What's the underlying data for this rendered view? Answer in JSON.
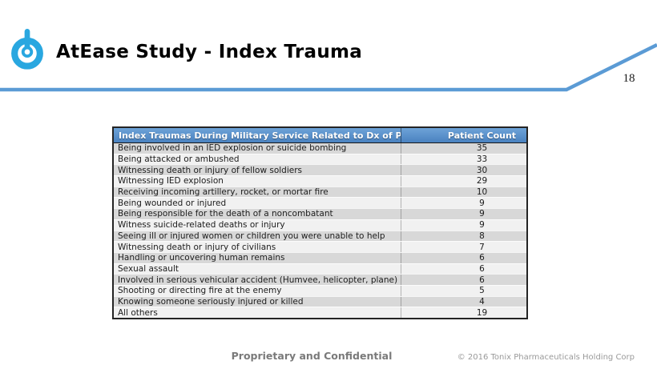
{
  "header": {
    "title": "AtEase Study - Index Trauma",
    "page_number": "18"
  },
  "table": {
    "columns": [
      "Index Traumas During Military Service Related to Dx of PTSD",
      "Patient Count"
    ],
    "rows": [
      {
        "label": "Being involved in an IED explosion or suicide bombing",
        "count": "35"
      },
      {
        "label": "Being attacked or ambushed",
        "count": "33"
      },
      {
        "label": "Witnessing death or injury of fellow soldiers",
        "count": "30"
      },
      {
        "label": "Witnessing IED explosion",
        "count": "29"
      },
      {
        "label": "Receiving incoming artillery, rocket, or mortar fire",
        "count": "10"
      },
      {
        "label": "Being wounded or injured",
        "count": "9"
      },
      {
        "label": "Being responsible for the death of a noncombatant",
        "count": "9"
      },
      {
        "label": "Witness suicide-related deaths or injury",
        "count": "9"
      },
      {
        "label": "Seeing ill or injured women or children you were unable to help",
        "count": "8"
      },
      {
        "label": "Witnessing death or injury of civilians",
        "count": "7"
      },
      {
        "label": "Handling or uncovering human remains",
        "count": "6"
      },
      {
        "label": "Sexual assault",
        "count": "6"
      },
      {
        "label": "Involved in serious vehicular accident (Humvee, helicopter, plane)",
        "count": "6"
      },
      {
        "label": "Shooting or directing fire at the enemy",
        "count": "5"
      },
      {
        "label": "Knowing someone seriously injured or killed",
        "count": "4"
      },
      {
        "label": "All others",
        "count": "19"
      }
    ]
  },
  "footer": {
    "confidential": "Proprietary and Confidential",
    "copyright": "© 2016 Tonix Pharmaceuticals Holding Corp"
  },
  "colors": {
    "accent_blue": "#5B9BD5",
    "logo_blue": "#29A7E0",
    "table_header_blue": "#4D87C3",
    "row_alt_gray": "#D8D8D8",
    "row_alt_light": "#F1F1F1"
  }
}
